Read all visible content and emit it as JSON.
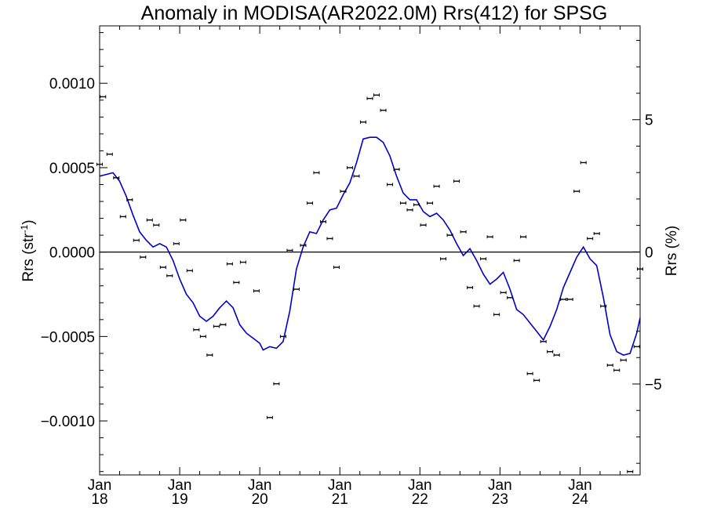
{
  "chart_data": {
    "type": "scatter",
    "title": "Anomaly in MODISA(AR2022.0M) Rrs(412) for SPSG",
    "ylabel_left": "Rrs (str",
    "ylabel_left_sup": "-1",
    "ylabel_left_end": ")",
    "ylabel_right": "Rrs (%)",
    "xlim": [
      2018.0,
      2024.75
    ],
    "ylim": [
      -0.00132,
      0.00134
    ],
    "y2lim": [
      -8.44,
      8.55
    ],
    "x_tick_labels": [
      {
        "x": 2018.0,
        "month": "Jan",
        "year": "18"
      },
      {
        "x": 2019.0,
        "month": "Jan",
        "year": "19"
      },
      {
        "x": 2020.0,
        "month": "Jan",
        "year": "20"
      },
      {
        "x": 2021.0,
        "month": "Jan",
        "year": "21"
      },
      {
        "x": 2022.0,
        "month": "Jan",
        "year": "22"
      },
      {
        "x": 2023.0,
        "month": "Jan",
        "year": "23"
      },
      {
        "x": 2024.0,
        "month": "Jan",
        "year": "24"
      }
    ],
    "y_ticks": [
      {
        "value": 0.001,
        "label": "0.0010"
      },
      {
        "value": 0.0005,
        "label": "0.0005"
      },
      {
        "value": 0.0,
        "label": "0.0000"
      },
      {
        "value": -0.0005,
        "label": "−0.0005"
      },
      {
        "value": -0.001,
        "label": "−0.0010"
      }
    ],
    "y2_ticks": [
      {
        "value": 5,
        "label": "5"
      },
      {
        "value": 0,
        "label": "0"
      },
      {
        "value": -5,
        "label": "−5"
      }
    ],
    "zero_line": 0.0,
    "points_color": "#000000",
    "line_color": "#0000cc",
    "points": [
      [
        2018.0,
        0.00052
      ],
      [
        2018.0417,
        0.00092
      ],
      [
        2018.125,
        0.00058
      ],
      [
        2018.2083,
        0.00044
      ],
      [
        2018.2917,
        0.00021
      ],
      [
        2018.375,
        0.00031
      ],
      [
        2018.4583,
        7e-05
      ],
      [
        2018.5417,
        -3e-05
      ],
      [
        2018.625,
        0.00019
      ],
      [
        2018.7083,
        0.00016
      ],
      [
        2018.7917,
        -9e-05
      ],
      [
        2018.875,
        -0.00014
      ],
      [
        2018.9583,
        5e-05
      ],
      [
        2019.0417,
        0.00019
      ],
      [
        2019.125,
        -0.00011
      ],
      [
        2019.2083,
        -0.00046
      ],
      [
        2019.2917,
        -0.0005
      ],
      [
        2019.375,
        -0.00061
      ],
      [
        2019.4583,
        -0.00044
      ],
      [
        2019.5417,
        -0.00043
      ],
      [
        2019.625,
        -7e-05
      ],
      [
        2019.7083,
        -0.00018
      ],
      [
        2019.7917,
        -6e-05
      ],
      [
        2019.9583,
        -0.00023
      ],
      [
        2020.125,
        -0.00098
      ],
      [
        2020.2083,
        -0.00078
      ],
      [
        2020.2917,
        -0.0005
      ],
      [
        2020.375,
        1e-05
      ],
      [
        2020.4583,
        -0.00022
      ],
      [
        2020.5417,
        4e-05
      ],
      [
        2020.625,
        0.00029
      ],
      [
        2020.7083,
        0.00047
      ],
      [
        2020.7917,
        0.00018
      ],
      [
        2020.875,
        8e-05
      ],
      [
        2020.9583,
        -9e-05
      ],
      [
        2021.0417,
        0.00036
      ],
      [
        2021.125,
        0.0005
      ],
      [
        2021.2083,
        0.00045
      ],
      [
        2021.2917,
        0.00077
      ],
      [
        2021.375,
        0.00091
      ],
      [
        2021.4583,
        0.00093
      ],
      [
        2021.5417,
        0.00084
      ],
      [
        2021.625,
        0.0004
      ],
      [
        2021.7083,
        0.00049
      ],
      [
        2021.7917,
        0.00029
      ],
      [
        2021.875,
        0.00025
      ],
      [
        2021.9583,
        0.00028
      ],
      [
        2022.0417,
        0.00016
      ],
      [
        2022.125,
        0.00029
      ],
      [
        2022.2083,
        0.00039
      ],
      [
        2022.2917,
        -4e-05
      ],
      [
        2022.375,
        0.0001
      ],
      [
        2022.4583,
        0.00042
      ],
      [
        2022.5417,
        0.00012
      ],
      [
        2022.625,
        -0.00021
      ],
      [
        2022.7083,
        -0.00032
      ],
      [
        2022.7917,
        -4e-05
      ],
      [
        2022.875,
        9e-05
      ],
      [
        2022.9583,
        -0.00037
      ],
      [
        2023.0417,
        -0.00024
      ],
      [
        2023.125,
        -0.00027
      ],
      [
        2023.2083,
        -5e-05
      ],
      [
        2023.2917,
        9e-05
      ],
      [
        2023.375,
        -0.00072
      ],
      [
        2023.4583,
        -0.00076
      ],
      [
        2023.5417,
        -0.00053
      ],
      [
        2023.625,
        -0.00059
      ],
      [
        2023.7083,
        -0.00061
      ],
      [
        2023.7917,
        -0.00028
      ],
      [
        2023.875,
        -0.00028
      ],
      [
        2023.9583,
        0.00036
      ],
      [
        2024.0417,
        0.00053
      ],
      [
        2024.125,
        8e-05
      ],
      [
        2024.2083,
        0.00011
      ],
      [
        2024.2917,
        -0.00032
      ],
      [
        2024.375,
        -0.00067
      ],
      [
        2024.4583,
        -0.0007
      ],
      [
        2024.5417,
        -0.00064
      ],
      [
        2024.625,
        -0.0013
      ],
      [
        2024.7083,
        -0.00056
      ],
      [
        2024.75,
        -0.0001
      ]
    ],
    "trend": [
      [
        2018.0,
        0.00045
      ],
      [
        2018.0833,
        0.00046
      ],
      [
        2018.1667,
        0.00047
      ],
      [
        2018.25,
        0.00042
      ],
      [
        2018.3333,
        0.00033
      ],
      [
        2018.4167,
        0.00022
      ],
      [
        2018.5,
        0.00012
      ],
      [
        2018.5833,
        7e-05
      ],
      [
        2018.6667,
        3e-05
      ],
      [
        2018.75,
        5e-05
      ],
      [
        2018.8333,
        3e-05
      ],
      [
        2018.9167,
        -5e-05
      ],
      [
        2019.0,
        -0.00016
      ],
      [
        2019.0833,
        -0.00025
      ],
      [
        2019.1667,
        -0.0003
      ],
      [
        2019.25,
        -0.00038
      ],
      [
        2019.3333,
        -0.00041
      ],
      [
        2019.4167,
        -0.00038
      ],
      [
        2019.5,
        -0.00033
      ],
      [
        2019.5833,
        -0.00029
      ],
      [
        2019.6667,
        -0.00033
      ],
      [
        2019.75,
        -0.00043
      ],
      [
        2019.8333,
        -0.00048
      ],
      [
        2019.9167,
        -0.00051
      ],
      [
        2020.0,
        -0.00054
      ],
      [
        2020.0417,
        -0.00058
      ],
      [
        2020.125,
        -0.00056
      ],
      [
        2020.2083,
        -0.00057
      ],
      [
        2020.2917,
        -0.00053
      ],
      [
        2020.375,
        -0.00035
      ],
      [
        2020.4583,
        -0.0001
      ],
      [
        2020.5417,
        3e-05
      ],
      [
        2020.625,
        0.00012
      ],
      [
        2020.7083,
        0.00011
      ],
      [
        2020.7917,
        0.00019
      ],
      [
        2020.875,
        0.00025
      ],
      [
        2020.9583,
        0.00026
      ],
      [
        2021.0417,
        0.00034
      ],
      [
        2021.125,
        0.00041
      ],
      [
        2021.2083,
        0.00053
      ],
      [
        2021.2917,
        0.00067
      ],
      [
        2021.375,
        0.00068
      ],
      [
        2021.4583,
        0.00068
      ],
      [
        2021.5417,
        0.00065
      ],
      [
        2021.625,
        0.00057
      ],
      [
        2021.7083,
        0.00045
      ],
      [
        2021.7917,
        0.00035
      ],
      [
        2021.875,
        0.00031
      ],
      [
        2021.9583,
        0.00031
      ],
      [
        2022.0417,
        0.00024
      ],
      [
        2022.125,
        0.00021
      ],
      [
        2022.2083,
        0.00023
      ],
      [
        2022.2917,
        0.00019
      ],
      [
        2022.375,
        0.00013
      ],
      [
        2022.4583,
        5e-05
      ],
      [
        2022.5417,
        -2e-05
      ],
      [
        2022.625,
        2e-05
      ],
      [
        2022.7083,
        -5e-05
      ],
      [
        2022.7917,
        -0.00013
      ],
      [
        2022.875,
        -0.00019
      ],
      [
        2022.9583,
        -0.00016
      ],
      [
        2023.0417,
        -0.00012
      ],
      [
        2023.125,
        -0.00022
      ],
      [
        2023.2083,
        -0.00034
      ],
      [
        2023.2917,
        -0.00037
      ],
      [
        2023.375,
        -0.00042
      ],
      [
        2023.4583,
        -0.00047
      ],
      [
        2023.5417,
        -0.00052
      ],
      [
        2023.625,
        -0.00044
      ],
      [
        2023.7083,
        -0.00034
      ],
      [
        2023.7917,
        -0.00021
      ],
      [
        2023.875,
        -0.00012
      ],
      [
        2023.9583,
        -3e-05
      ],
      [
        2024.0417,
        3e-05
      ],
      [
        2024.125,
        -4e-05
      ],
      [
        2024.2083,
        -8e-05
      ],
      [
        2024.2917,
        -0.00027
      ],
      [
        2024.375,
        -0.00049
      ],
      [
        2024.4583,
        -0.00059
      ],
      [
        2024.5417,
        -0.00061
      ],
      [
        2024.625,
        -0.0006
      ],
      [
        2024.7083,
        -0.00048
      ],
      [
        2024.75,
        -0.00039
      ]
    ]
  }
}
